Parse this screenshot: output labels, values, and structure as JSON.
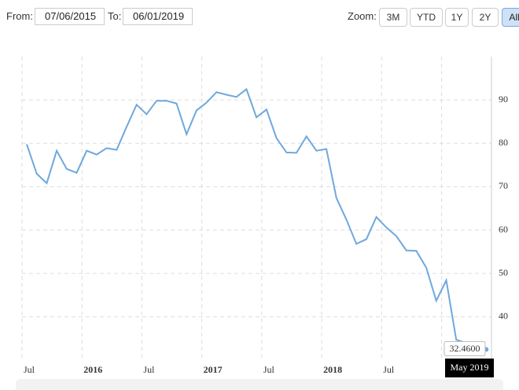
{
  "controls": {
    "from_label": "From:",
    "from_value": "07/06/2015",
    "to_label": "To:",
    "to_value": "06/01/2019",
    "zoom_label": "Zoom:",
    "zoom_buttons": [
      "3M",
      "YTD",
      "1Y",
      "2Y",
      "All"
    ],
    "selected_zoom": 4
  },
  "chart_data": {
    "type": "line",
    "x": [
      "2015-07",
      "2015-08",
      "2015-09",
      "2015-10",
      "2015-11",
      "2015-12",
      "2016-01",
      "2016-02",
      "2016-03",
      "2016-04",
      "2016-05",
      "2016-06",
      "2016-07",
      "2016-08",
      "2016-09",
      "2016-10",
      "2016-11",
      "2016-12",
      "2017-01",
      "2017-02",
      "2017-03",
      "2017-04",
      "2017-05",
      "2017-06",
      "2017-07",
      "2017-08",
      "2017-09",
      "2017-10",
      "2017-11",
      "2017-12",
      "2018-01",
      "2018-02",
      "2018-03",
      "2018-04",
      "2018-05",
      "2018-06",
      "2018-07",
      "2018-08",
      "2018-09",
      "2018-10",
      "2018-11",
      "2018-12",
      "2019-01",
      "2019-02",
      "2019-05"
    ],
    "x_labels": [
      null,
      null,
      null,
      null,
      null,
      null,
      null,
      null,
      null,
      null,
      null,
      null,
      null,
      null,
      null,
      null,
      null,
      null,
      null,
      null,
      null,
      null,
      null,
      null,
      null,
      null,
      null,
      null,
      null,
      null,
      null,
      null,
      null,
      null,
      null,
      null,
      null,
      null,
      null,
      null,
      null,
      null,
      null,
      null,
      "May 2019"
    ],
    "series": [
      {
        "color": "#6fa8dc",
        "values": [
          79.8,
          73.0,
          70.8,
          78.3,
          74.1,
          73.2,
          78.3,
          77.4,
          78.9,
          78.5,
          83.8,
          88.9,
          86.7,
          89.8,
          89.8,
          89.2,
          82.1,
          87.6,
          89.4,
          91.8,
          91.2,
          90.7,
          92.5,
          86.0,
          87.8,
          81.2,
          77.9,
          77.8,
          81.6,
          78.3,
          78.7,
          67.4,
          62.4,
          56.8,
          57.9,
          63.0,
          60.6,
          58.6,
          55.3,
          55.2,
          51.3,
          43.7,
          48.4,
          34.7,
          32.46
        ],
        "value_labels": [
          null,
          null,
          null,
          null,
          null,
          null,
          null,
          null,
          null,
          null,
          null,
          null,
          null,
          null,
          null,
          null,
          null,
          null,
          null,
          null,
          null,
          null,
          null,
          null,
          null,
          null,
          null,
          null,
          null,
          null,
          null,
          null,
          null,
          null,
          null,
          null,
          null,
          null,
          null,
          null,
          null,
          null,
          null,
          null,
          "32.4600"
        ]
      }
    ],
    "xlim": [
      "2015-07",
      "2019-06"
    ],
    "xticks": [
      {
        "value": "2015-07",
        "label": "Jul"
      },
      {
        "value": "2016-01",
        "label": "2016"
      },
      {
        "value": "2016-07",
        "label": "Jul"
      },
      {
        "value": "2017-01",
        "label": "2017"
      },
      {
        "value": "2017-07",
        "label": "Jul"
      },
      {
        "value": "2018-01",
        "label": "2018"
      },
      {
        "value": "2018-07",
        "label": "Jul"
      },
      {
        "value": "2019-01",
        "label": null
      }
    ],
    "ylim": [
      30,
      100
    ],
    "yticks": [
      40,
      50,
      60,
      70,
      80,
      90
    ],
    "grid": true,
    "y_axis_side": "right"
  }
}
